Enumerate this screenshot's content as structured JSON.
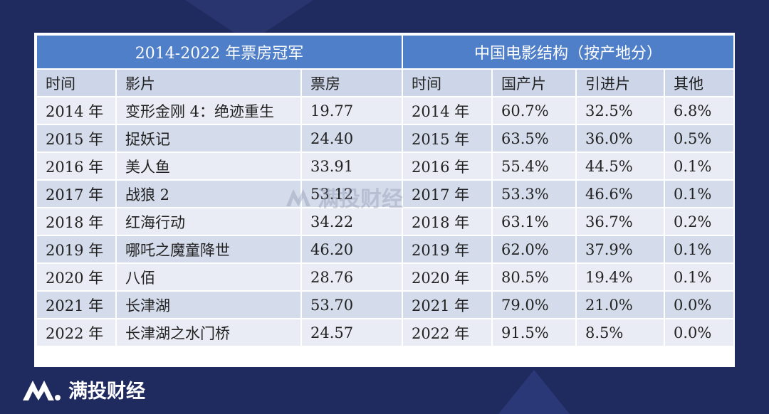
{
  "table": {
    "left_title": "2014-2022 年票房冠军",
    "right_title": "中国电影结构（按产地分）",
    "headers": [
      "时间",
      "影片",
      "票房",
      "时间",
      "国产片",
      "引进片",
      "其他"
    ],
    "rows": [
      [
        "2014 年",
        "变形金刚 4：绝迹重生",
        "19.77",
        "2014 年",
        "60.7%",
        "32.5%",
        "6.8%"
      ],
      [
        "2015 年",
        "捉妖记",
        "24.40",
        "2015 年",
        "63.5%",
        "36.0%",
        "0.5%"
      ],
      [
        "2016 年",
        "美人鱼",
        "33.91",
        "2016 年",
        "55.4%",
        "44.5%",
        "0.1%"
      ],
      [
        "2017 年",
        "战狼 2",
        "53.12",
        "2017 年",
        "53.3%",
        "46.6%",
        "0.1%"
      ],
      [
        "2018 年",
        "红海行动",
        "34.22",
        "2018 年",
        "63.1%",
        "36.7%",
        "0.2%"
      ],
      [
        "2019 年",
        "哪吒之魔童降世",
        "46.20",
        "2019 年",
        "62.0%",
        "37.9%",
        "0.1%"
      ],
      [
        "2020 年",
        "八佰",
        "28.76",
        "2020 年",
        "80.5%",
        "19.4%",
        "0.1%"
      ],
      [
        "2021 年",
        "长津湖",
        "53.70",
        "2021 年",
        "79.0%",
        "21.0%",
        "0.0%"
      ],
      [
        "2022 年",
        "长津湖之水门桥",
        "24.57",
        "2022 年",
        "91.5%",
        "8.5%",
        "0.0%"
      ]
    ]
  },
  "watermark": "满投财经",
  "brand": "满投财经",
  "colors": {
    "background": "#1f2a5e",
    "header_blue": "#4f7fc8",
    "row_light": "#e9ecf4",
    "row_dark": "#d4dbea"
  }
}
